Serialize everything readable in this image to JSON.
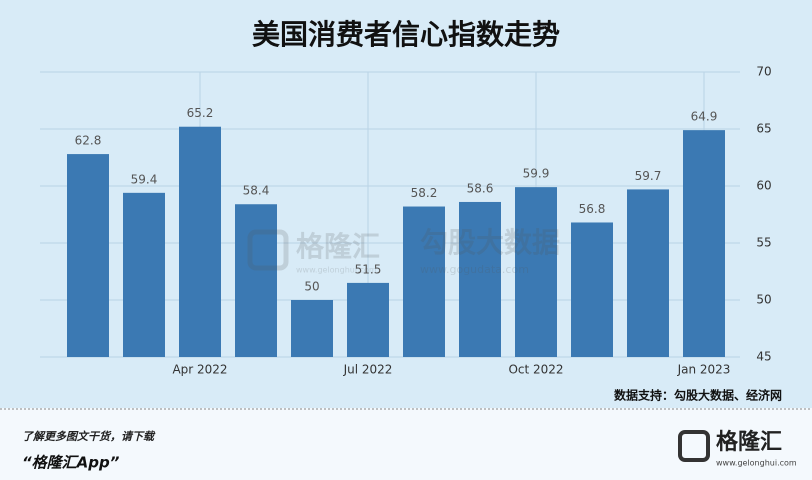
{
  "chart_data": {
    "type": "bar",
    "title": "美国消费者信心指数走势",
    "categories": [
      null,
      null,
      "Apr 2022",
      null,
      null,
      "Jul 2022",
      null,
      null,
      "Oct 2022",
      null,
      null,
      "Jan 2023"
    ],
    "values": [
      62.8,
      59.4,
      65.2,
      58.4,
      50,
      51.5,
      58.2,
      58.6,
      59.9,
      56.8,
      59.7,
      64.9
    ],
    "color": "#3b79b3",
    "ylim": [
      45,
      70
    ],
    "yticks": [
      45,
      50,
      55,
      60,
      65,
      70
    ],
    "grid": true,
    "source": "数据支持：勾股大数据、经济网",
    "watermarks": [
      "格隆汇",
      "www.gelonghui.com",
      "勾股大数据",
      "www.gogudata.com"
    ]
  },
  "footer": {
    "line1": "了解更多图文干货，请下载",
    "line2": "“格隆汇App”",
    "logo": "格隆汇",
    "logo_url": "www.gelonghui.com"
  }
}
